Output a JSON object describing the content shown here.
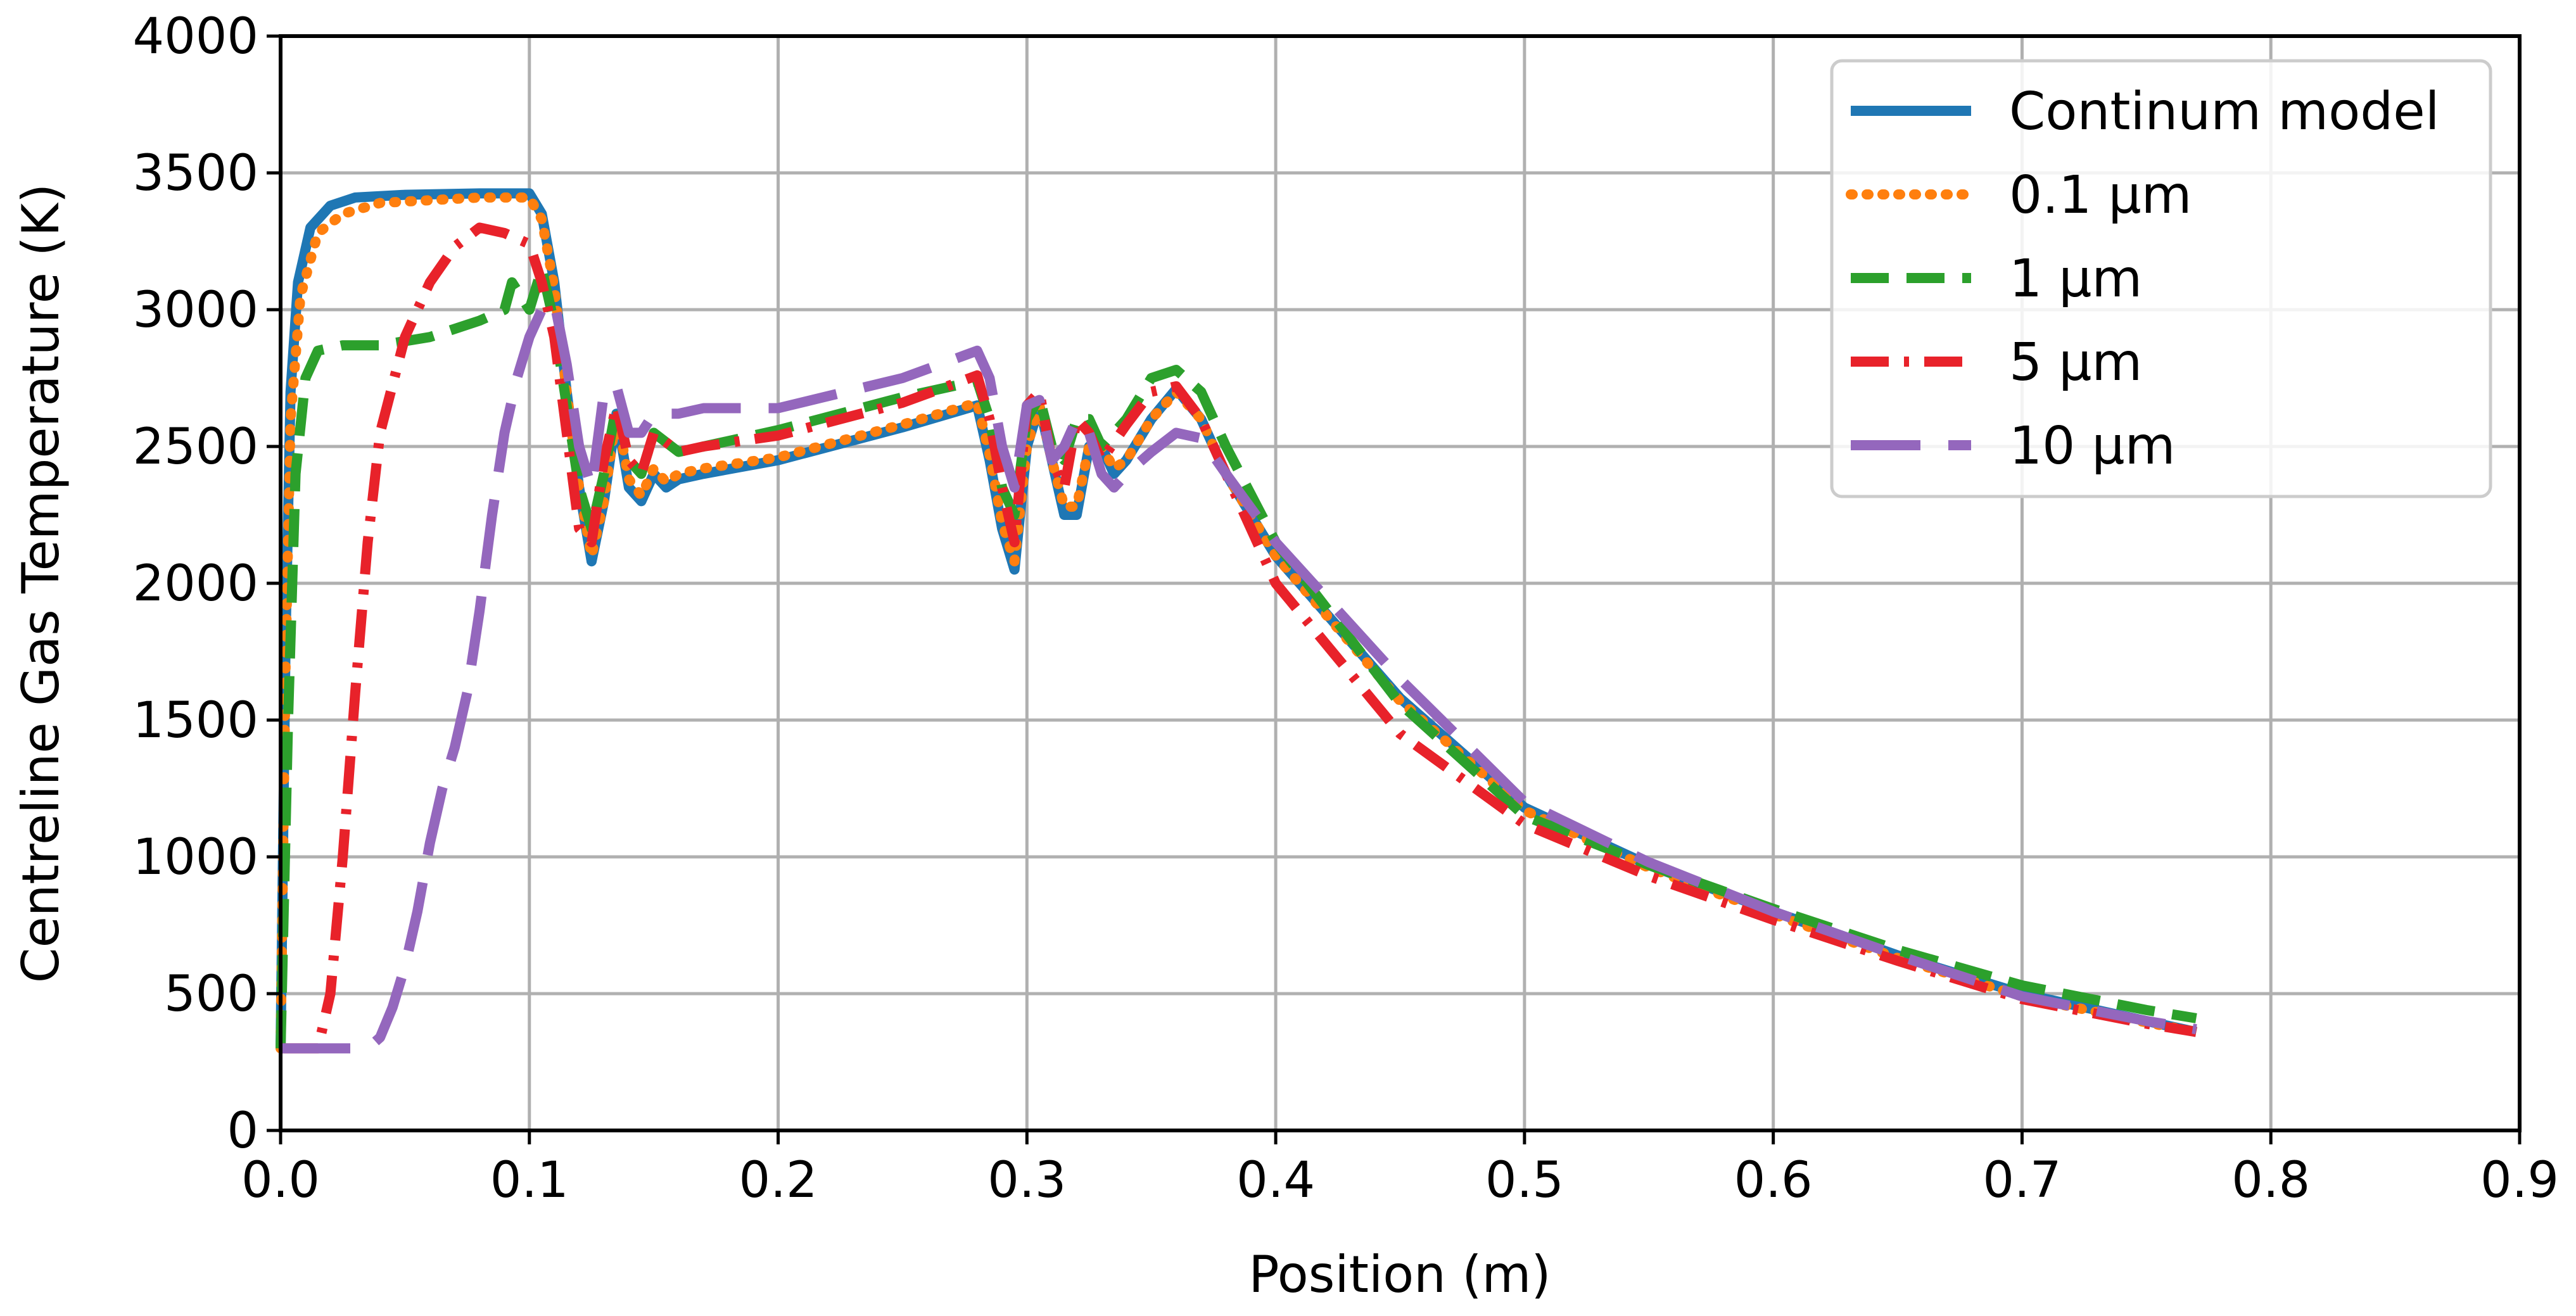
{
  "chart_data": {
    "type": "line",
    "title": "",
    "xlabel": "Position (m)",
    "ylabel": "Centreline Gas Temperature (K)",
    "xlim": [
      0.0,
      0.9
    ],
    "ylim": [
      0,
      4000
    ],
    "xticks": [
      0.0,
      0.1,
      0.2,
      0.3,
      0.4,
      0.5,
      0.6,
      0.7,
      0.8,
      0.9
    ],
    "xtick_labels": [
      "0.0",
      "0.1",
      "0.2",
      "0.3",
      "0.4",
      "0.5",
      "0.6",
      "0.7",
      "0.8",
      "0.9"
    ],
    "yticks": [
      0,
      500,
      1000,
      1500,
      2000,
      2500,
      3000,
      3500,
      4000
    ],
    "ytick_labels": [
      "0",
      "500",
      "1000",
      "1500",
      "2000",
      "2500",
      "3000",
      "3500",
      "4000"
    ],
    "grid": true,
    "legend_position": "top-right",
    "series": [
      {
        "name": "Continum model",
        "color": "#1f77b4",
        "style": "solid",
        "points": [
          [
            0.0,
            300
          ],
          [
            0.002,
            1800
          ],
          [
            0.004,
            2700
          ],
          [
            0.007,
            3100
          ],
          [
            0.012,
            3300
          ],
          [
            0.02,
            3380
          ],
          [
            0.03,
            3410
          ],
          [
            0.05,
            3420
          ],
          [
            0.08,
            3425
          ],
          [
            0.1,
            3425
          ],
          [
            0.105,
            3350
          ],
          [
            0.11,
            3100
          ],
          [
            0.115,
            2700
          ],
          [
            0.12,
            2350
          ],
          [
            0.125,
            2080
          ],
          [
            0.13,
            2300
          ],
          [
            0.135,
            2620
          ],
          [
            0.14,
            2350
          ],
          [
            0.145,
            2300
          ],
          [
            0.15,
            2400
          ],
          [
            0.155,
            2350
          ],
          [
            0.16,
            2380
          ],
          [
            0.17,
            2400
          ],
          [
            0.2,
            2450
          ],
          [
            0.25,
            2570
          ],
          [
            0.28,
            2650
          ],
          [
            0.285,
            2450
          ],
          [
            0.29,
            2200
          ],
          [
            0.295,
            2050
          ],
          [
            0.3,
            2500
          ],
          [
            0.305,
            2650
          ],
          [
            0.31,
            2450
          ],
          [
            0.315,
            2250
          ],
          [
            0.32,
            2250
          ],
          [
            0.325,
            2500
          ],
          [
            0.33,
            2500
          ],
          [
            0.335,
            2400
          ],
          [
            0.34,
            2450
          ],
          [
            0.35,
            2600
          ],
          [
            0.36,
            2710
          ],
          [
            0.37,
            2600
          ],
          [
            0.38,
            2400
          ],
          [
            0.4,
            2100
          ],
          [
            0.45,
            1580
          ],
          [
            0.5,
            1180
          ],
          [
            0.55,
            970
          ],
          [
            0.6,
            800
          ],
          [
            0.65,
            640
          ],
          [
            0.7,
            500
          ],
          [
            0.75,
            400
          ],
          [
            0.77,
            360
          ]
        ]
      },
      {
        "name": "0.1 µm",
        "color": "#ff7f0e",
        "style": "dotted",
        "points": [
          [
            0.0,
            300
          ],
          [
            0.002,
            1700
          ],
          [
            0.004,
            2600
          ],
          [
            0.008,
            3050
          ],
          [
            0.015,
            3280
          ],
          [
            0.025,
            3350
          ],
          [
            0.04,
            3390
          ],
          [
            0.06,
            3400
          ],
          [
            0.08,
            3410
          ],
          [
            0.1,
            3410
          ],
          [
            0.105,
            3330
          ],
          [
            0.11,
            3080
          ],
          [
            0.115,
            2700
          ],
          [
            0.12,
            2350
          ],
          [
            0.125,
            2100
          ],
          [
            0.13,
            2300
          ],
          [
            0.135,
            2620
          ],
          [
            0.14,
            2380
          ],
          [
            0.145,
            2320
          ],
          [
            0.15,
            2420
          ],
          [
            0.155,
            2370
          ],
          [
            0.16,
            2400
          ],
          [
            0.17,
            2420
          ],
          [
            0.2,
            2460
          ],
          [
            0.25,
            2580
          ],
          [
            0.28,
            2660
          ],
          [
            0.285,
            2470
          ],
          [
            0.29,
            2220
          ],
          [
            0.295,
            2080
          ],
          [
            0.3,
            2500
          ],
          [
            0.305,
            2650
          ],
          [
            0.31,
            2450
          ],
          [
            0.315,
            2280
          ],
          [
            0.32,
            2280
          ],
          [
            0.325,
            2500
          ],
          [
            0.33,
            2500
          ],
          [
            0.335,
            2420
          ],
          [
            0.34,
            2450
          ],
          [
            0.35,
            2600
          ],
          [
            0.36,
            2700
          ],
          [
            0.37,
            2600
          ],
          [
            0.38,
            2400
          ],
          [
            0.4,
            2100
          ],
          [
            0.45,
            1570
          ],
          [
            0.5,
            1170
          ],
          [
            0.55,
            960
          ],
          [
            0.6,
            790
          ],
          [
            0.65,
            630
          ],
          [
            0.7,
            490
          ],
          [
            0.75,
            395
          ],
          [
            0.77,
            360
          ]
        ]
      },
      {
        "name": "1 µm",
        "color": "#2ca02c",
        "style": "dashed",
        "points": [
          [
            0.0,
            300
          ],
          [
            0.003,
            1500
          ],
          [
            0.006,
            2400
          ],
          [
            0.01,
            2750
          ],
          [
            0.015,
            2850
          ],
          [
            0.025,
            2870
          ],
          [
            0.04,
            2870
          ],
          [
            0.06,
            2900
          ],
          [
            0.08,
            2960
          ],
          [
            0.09,
            3000
          ],
          [
            0.093,
            3100
          ],
          [
            0.1,
            3000
          ],
          [
            0.105,
            3150
          ],
          [
            0.11,
            2950
          ],
          [
            0.115,
            2650
          ],
          [
            0.12,
            2350
          ],
          [
            0.125,
            2200
          ],
          [
            0.13,
            2400
          ],
          [
            0.135,
            2650
          ],
          [
            0.14,
            2450
          ],
          [
            0.145,
            2400
          ],
          [
            0.15,
            2550
          ],
          [
            0.16,
            2480
          ],
          [
            0.17,
            2500
          ],
          [
            0.2,
            2560
          ],
          [
            0.25,
            2680
          ],
          [
            0.28,
            2740
          ],
          [
            0.285,
            2600
          ],
          [
            0.29,
            2350
          ],
          [
            0.295,
            2250
          ],
          [
            0.3,
            2600
          ],
          [
            0.305,
            2680
          ],
          [
            0.31,
            2500
          ],
          [
            0.315,
            2450
          ],
          [
            0.32,
            2600
          ],
          [
            0.325,
            2600
          ],
          [
            0.33,
            2500
          ],
          [
            0.335,
            2550
          ],
          [
            0.34,
            2600
          ],
          [
            0.35,
            2750
          ],
          [
            0.36,
            2780
          ],
          [
            0.37,
            2700
          ],
          [
            0.38,
            2500
          ],
          [
            0.4,
            2150
          ],
          [
            0.45,
            1560
          ],
          [
            0.5,
            1150
          ],
          [
            0.55,
            970
          ],
          [
            0.6,
            810
          ],
          [
            0.65,
            660
          ],
          [
            0.7,
            530
          ],
          [
            0.75,
            440
          ],
          [
            0.77,
            410
          ]
        ]
      },
      {
        "name": "5 µm",
        "color": "#e8222a",
        "style": "dashdot",
        "points": [
          [
            0.0,
            300
          ],
          [
            0.01,
            300
          ],
          [
            0.015,
            300
          ],
          [
            0.02,
            500
          ],
          [
            0.025,
            1000
          ],
          [
            0.03,
            1600
          ],
          [
            0.035,
            2150
          ],
          [
            0.04,
            2550
          ],
          [
            0.05,
            2900
          ],
          [
            0.06,
            3100
          ],
          [
            0.07,
            3230
          ],
          [
            0.08,
            3300
          ],
          [
            0.09,
            3280
          ],
          [
            0.1,
            3240
          ],
          [
            0.105,
            3100
          ],
          [
            0.11,
            2900
          ],
          [
            0.115,
            2550
          ],
          [
            0.12,
            2200
          ],
          [
            0.125,
            2150
          ],
          [
            0.13,
            2450
          ],
          [
            0.135,
            2650
          ],
          [
            0.14,
            2450
          ],
          [
            0.145,
            2400
          ],
          [
            0.15,
            2550
          ],
          [
            0.16,
            2480
          ],
          [
            0.17,
            2500
          ],
          [
            0.2,
            2540
          ],
          [
            0.25,
            2660
          ],
          [
            0.28,
            2760
          ],
          [
            0.285,
            2600
          ],
          [
            0.29,
            2350
          ],
          [
            0.295,
            2150
          ],
          [
            0.3,
            2650
          ],
          [
            0.305,
            2700
          ],
          [
            0.31,
            2450
          ],
          [
            0.315,
            2350
          ],
          [
            0.32,
            2600
          ],
          [
            0.325,
            2550
          ],
          [
            0.33,
            2450
          ],
          [
            0.34,
            2580
          ],
          [
            0.35,
            2700
          ],
          [
            0.36,
            2720
          ],
          [
            0.37,
            2600
          ],
          [
            0.38,
            2400
          ],
          [
            0.4,
            2000
          ],
          [
            0.45,
            1450
          ],
          [
            0.5,
            1120
          ],
          [
            0.55,
            930
          ],
          [
            0.6,
            770
          ],
          [
            0.65,
            620
          ],
          [
            0.7,
            480
          ],
          [
            0.75,
            390
          ],
          [
            0.77,
            360
          ]
        ]
      },
      {
        "name": "10 µm",
        "color": "#9467bd",
        "style": "longdash",
        "points": [
          [
            0.0,
            300
          ],
          [
            0.02,
            300
          ],
          [
            0.035,
            300
          ],
          [
            0.04,
            340
          ],
          [
            0.045,
            450
          ],
          [
            0.05,
            600
          ],
          [
            0.055,
            800
          ],
          [
            0.06,
            1050
          ],
          [
            0.065,
            1250
          ],
          [
            0.07,
            1400
          ],
          [
            0.075,
            1600
          ],
          [
            0.08,
            1900
          ],
          [
            0.085,
            2250
          ],
          [
            0.09,
            2550
          ],
          [
            0.095,
            2750
          ],
          [
            0.1,
            2900
          ],
          [
            0.105,
            3000
          ],
          [
            0.11,
            3030
          ],
          [
            0.115,
            2800
          ],
          [
            0.12,
            2500
          ],
          [
            0.125,
            2350
          ],
          [
            0.13,
            2700
          ],
          [
            0.135,
            2720
          ],
          [
            0.14,
            2550
          ],
          [
            0.145,
            2550
          ],
          [
            0.15,
            2620
          ],
          [
            0.16,
            2620
          ],
          [
            0.17,
            2640
          ],
          [
            0.2,
            2640
          ],
          [
            0.25,
            2750
          ],
          [
            0.28,
            2850
          ],
          [
            0.285,
            2750
          ],
          [
            0.29,
            2500
          ],
          [
            0.295,
            2350
          ],
          [
            0.3,
            2650
          ],
          [
            0.305,
            2670
          ],
          [
            0.31,
            2450
          ],
          [
            0.315,
            2500
          ],
          [
            0.32,
            2600
          ],
          [
            0.325,
            2550
          ],
          [
            0.33,
            2400
          ],
          [
            0.335,
            2350
          ],
          [
            0.34,
            2400
          ],
          [
            0.35,
            2480
          ],
          [
            0.36,
            2550
          ],
          [
            0.37,
            2530
          ],
          [
            0.38,
            2400
          ],
          [
            0.4,
            2150
          ],
          [
            0.45,
            1650
          ],
          [
            0.5,
            1200
          ],
          [
            0.55,
            980
          ],
          [
            0.6,
            800
          ],
          [
            0.65,
            640
          ],
          [
            0.7,
            490
          ],
          [
            0.75,
            400
          ],
          [
            0.77,
            370
          ]
        ]
      }
    ]
  }
}
